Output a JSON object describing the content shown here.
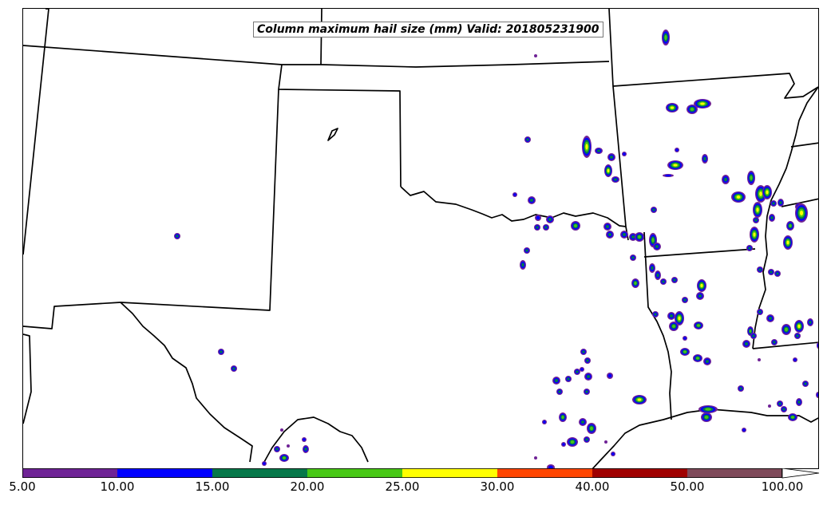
{
  "map": {
    "title": "Column maximum hail size (mm) Valid: 201805231900",
    "variable": "Column maximum hail size",
    "units": "mm",
    "valid_time": "201805231900"
  },
  "colorbar": {
    "levels": [
      "5.00",
      "10.00",
      "15.00",
      "20.00",
      "25.00",
      "30.00",
      "40.00",
      "50.00",
      "100.00"
    ],
    "colors": [
      "#6f2396",
      "#0000ff",
      "#06784a",
      "#47c815",
      "#ffff00",
      "#ff4500",
      "#a00000",
      "#7f4a5a"
    ],
    "extend": "max"
  },
  "legend_colors": {
    "outline": "#000000",
    "storm_outer": "#6f2396",
    "storm_ring2": "#0000ff",
    "storm_ring3": "#06784a",
    "storm_ring4": "#47c815",
    "storm_ring5": "#ffff00",
    "storm_core": "#ff4500"
  }
}
